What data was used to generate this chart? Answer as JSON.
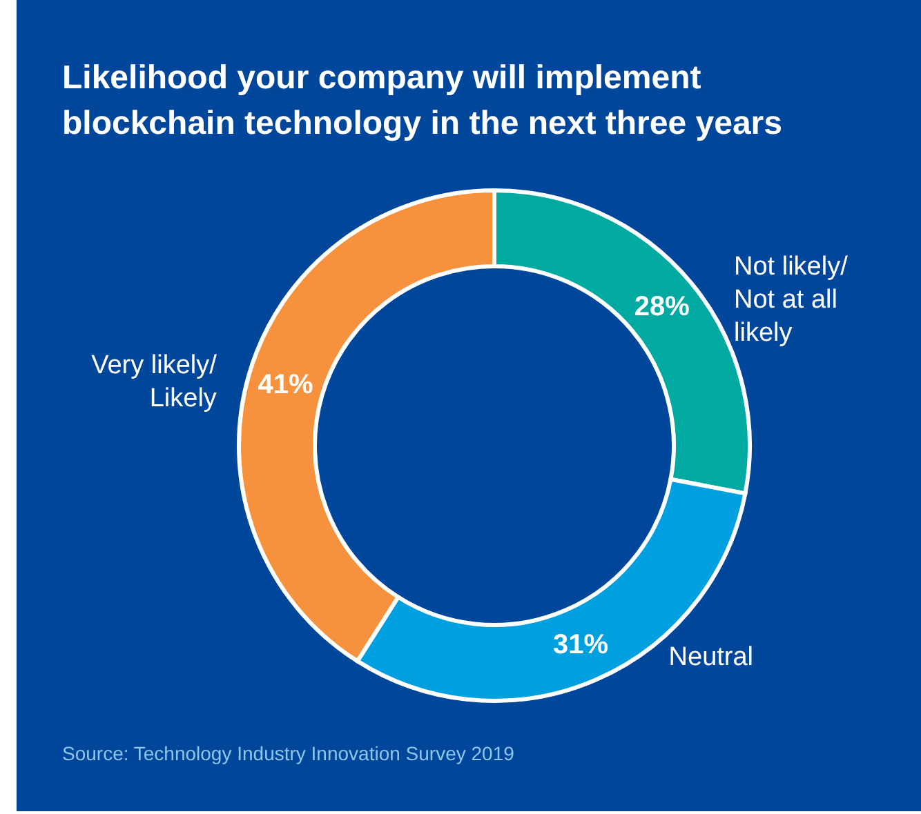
{
  "chart_data": {
    "type": "donut",
    "title": "Likelihood your company will implement\nblockchain technology in the next three years",
    "categories": [
      "Not likely/\nNot at all\nlikely",
      "Neutral",
      "Very likely/\nLikely"
    ],
    "values": [
      28,
      31,
      41
    ],
    "colors": [
      "#00aaa0",
      "#009fdf",
      "#f6913e"
    ],
    "value_labels": [
      "28%",
      "31%",
      "41%"
    ],
    "annotations": [
      "Source: Technology Industry Innovation Survey 2019"
    ]
  }
}
